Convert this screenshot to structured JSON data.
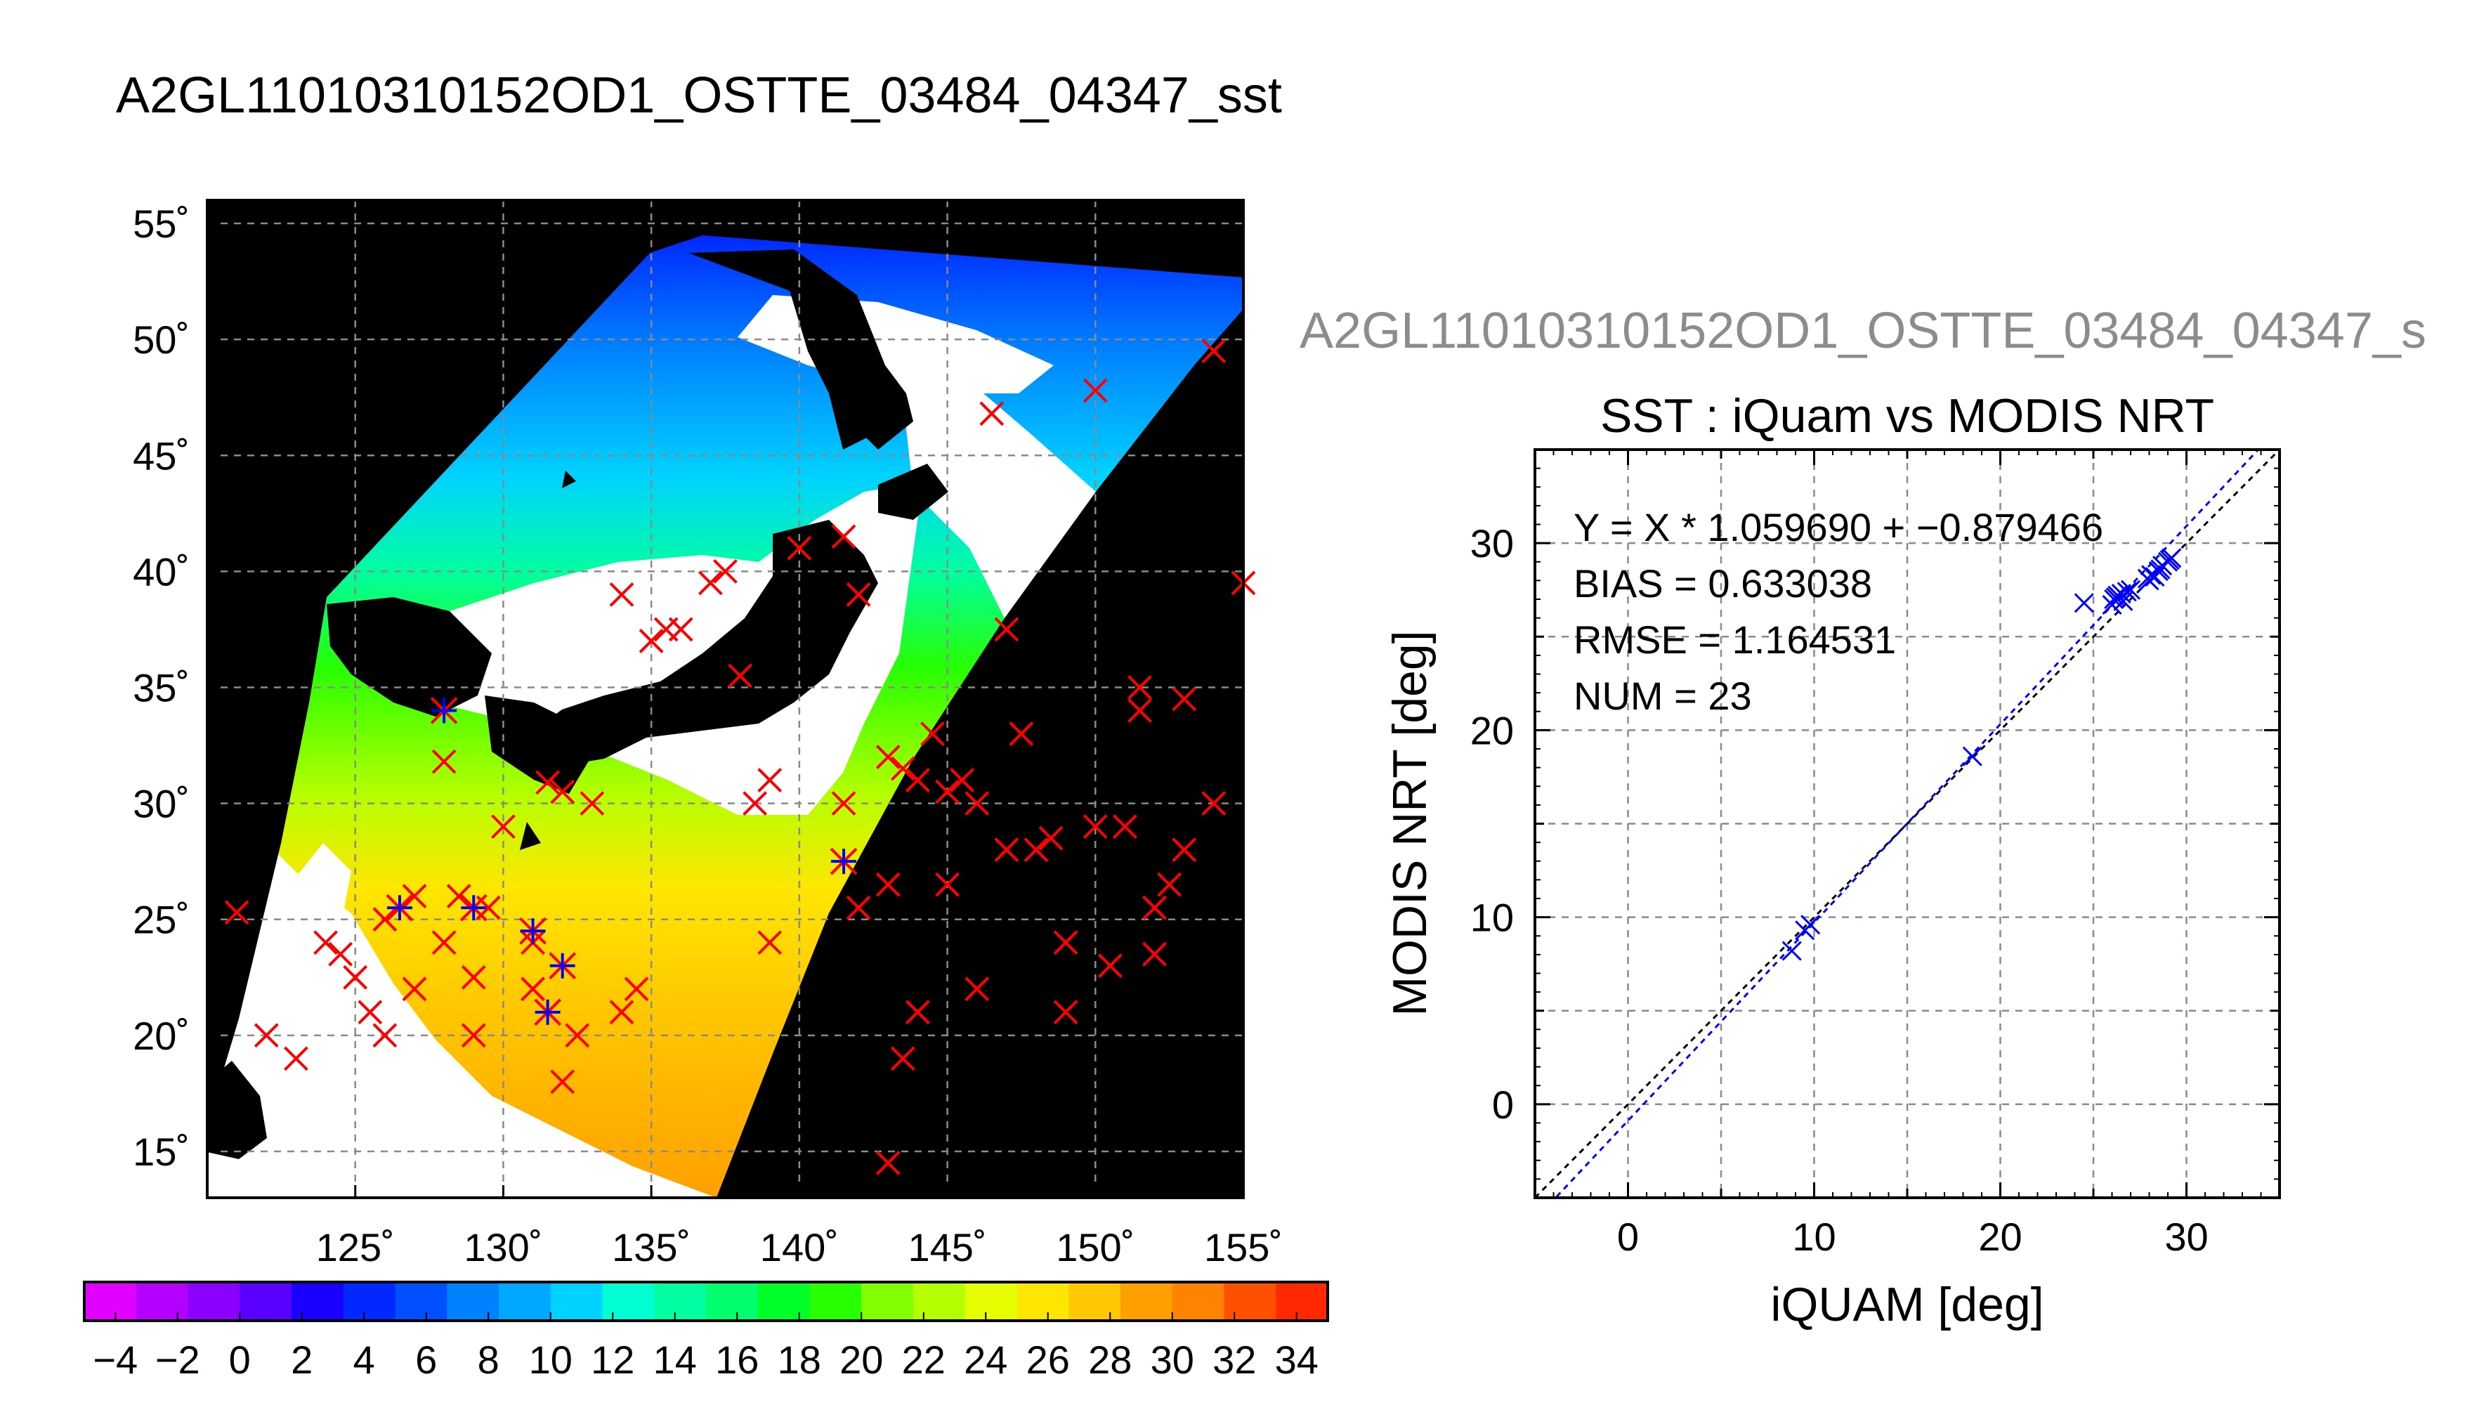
{
  "title": "A2GL11010310152OD1_OSTTE_03484_04347_sst",
  "chart_data": [
    {
      "type": "map",
      "title": "A2GL11010310152OD1_OSTTE_03484_04347_sst",
      "lon_ticks": [
        125,
        130,
        135,
        140,
        145,
        150,
        155
      ],
      "lat_ticks": [
        15,
        20,
        25,
        30,
        35,
        40,
        45,
        50,
        55
      ],
      "lon_tick_labels": [
        "125˚",
        "130˚",
        "135˚",
        "140˚",
        "145˚",
        "150˚",
        "155˚"
      ],
      "lat_tick_labels": [
        "15˚",
        "20˚",
        "25˚",
        "30˚",
        "35˚",
        "40˚",
        "45˚",
        "50˚",
        "55˚"
      ],
      "xlim": [
        120,
        155
      ],
      "ylim": [
        13,
        56
      ],
      "grid": true,
      "colorbar": {
        "range": [
          -5,
          35
        ],
        "tick_values": [
          -4,
          -2,
          0,
          2,
          4,
          6,
          8,
          10,
          12,
          14,
          16,
          18,
          20,
          22,
          24,
          26,
          28,
          30,
          32,
          34
        ],
        "tick_labels": [
          "−4",
          "−2",
          "0",
          "2",
          "4",
          "6",
          "8",
          "10",
          "12",
          "14",
          "16",
          "18",
          "20",
          "22",
          "24",
          "26",
          "28",
          "30",
          "32",
          "34"
        ],
        "colors": [
          "#e100ff",
          "#b400ff",
          "#8c00ff",
          "#5a00ff",
          "#1a00ff",
          "#0028ff",
          "#0050ff",
          "#0082ff",
          "#00a8ff",
          "#00d2ff",
          "#00ffd2",
          "#00ffa0",
          "#00ff6e",
          "#00ff28",
          "#28ff00",
          "#82ff00",
          "#b4ff00",
          "#e6ff00",
          "#ffe600",
          "#ffc800",
          "#ffa000",
          "#ff8200",
          "#ff5000",
          "#ff2800"
        ]
      },
      "markers_red_x": [
        [
          121,
          25.3
        ],
        [
          122,
          20
        ],
        [
          123,
          19
        ],
        [
          124,
          24
        ],
        [
          124.5,
          23.5
        ],
        [
          125,
          22.5
        ],
        [
          125.5,
          21
        ],
        [
          126,
          20
        ],
        [
          126,
          25
        ],
        [
          127,
          26
        ],
        [
          127,
          22
        ],
        [
          128,
          24
        ],
        [
          128,
          31.8
        ],
        [
          128.5,
          26
        ],
        [
          129,
          22.5
        ],
        [
          129,
          20
        ],
        [
          129.5,
          25.5
        ],
        [
          130,
          29
        ],
        [
          131,
          24
        ],
        [
          131,
          22
        ],
        [
          131.5,
          30.9
        ],
        [
          132,
          30.5
        ],
        [
          132,
          18
        ],
        [
          132.5,
          20
        ],
        [
          133,
          30
        ],
        [
          134,
          39
        ],
        [
          134,
          21
        ],
        [
          134.5,
          22
        ],
        [
          135,
          37
        ],
        [
          135.5,
          37.5
        ],
        [
          136,
          37.5
        ],
        [
          137,
          39.5
        ],
        [
          137.5,
          40
        ],
        [
          138,
          35.5
        ],
        [
          138.5,
          30
        ],
        [
          139,
          31
        ],
        [
          139,
          24
        ],
        [
          140,
          41
        ],
        [
          141.5,
          30
        ],
        [
          141.5,
          41.5
        ],
        [
          142,
          39
        ],
        [
          142,
          25.5
        ],
        [
          143,
          26.5
        ],
        [
          143,
          32
        ],
        [
          143.5,
          31.5
        ],
        [
          144,
          31
        ],
        [
          144.5,
          33
        ],
        [
          144,
          21
        ],
        [
          143.5,
          19
        ],
        [
          143,
          14.5
        ],
        [
          145,
          30.5
        ],
        [
          145.5,
          31
        ],
        [
          145,
          26.5
        ],
        [
          146,
          22
        ],
        [
          146,
          30
        ],
        [
          146.5,
          46.8
        ],
        [
          147,
          37.5
        ],
        [
          147.5,
          33
        ],
        [
          147,
          28
        ],
        [
          148,
          28
        ],
        [
          148.5,
          28.5
        ],
        [
          149,
          24
        ],
        [
          149,
          21
        ],
        [
          150,
          47.8
        ],
        [
          150,
          29
        ],
        [
          150.5,
          23
        ],
        [
          151,
          29
        ],
        [
          151.5,
          35
        ],
        [
          151.5,
          34
        ],
        [
          152,
          25.5
        ],
        [
          152.5,
          26.5
        ],
        [
          152,
          23.5
        ],
        [
          153,
          34.5
        ],
        [
          153,
          28
        ],
        [
          154,
          49.5
        ],
        [
          154,
          30
        ],
        [
          155,
          39.5
        ]
      ],
      "markers_blue_star": [
        [
          128,
          34
        ],
        [
          129,
          25.5
        ],
        [
          131,
          24.5
        ],
        [
          132,
          23
        ],
        [
          131.5,
          21
        ],
        [
          141.5,
          27.5
        ],
        [
          126.5,
          25.5
        ]
      ]
    },
    {
      "type": "scatter",
      "file_title": "A2GL11010310152OD1_OSTTE_03484_04347_s",
      "title": "SST : iQuam vs MODIS NRT",
      "xlabel": "iQUAM [deg]",
      "ylabel": "MODIS NRT [deg]",
      "xlim": [
        -5,
        35
      ],
      "ylim": [
        -5,
        35
      ],
      "x_ticks": [
        0,
        10,
        20,
        30
      ],
      "y_ticks": [
        0,
        10,
        20,
        30
      ],
      "grid": true,
      "stats": {
        "fit": "Y = X * 1.059690 + −0.879466",
        "bias": "BIAS = 0.633038",
        "rmse": "RMSE = 1.164531",
        "num": "NUM = 23"
      },
      "fit_line": {
        "slope": 1.05969,
        "intercept": -0.879466,
        "color": "#0000ff"
      },
      "identity_line": {
        "color": "#000000"
      },
      "series": [
        {
          "marker": "x",
          "color": "#0000ff",
          "x": [
            8.8,
            9.5,
            18.5,
            24.5,
            26.0,
            26.2,
            26.5,
            26.8,
            27.0,
            28.0,
            28.1,
            28.5,
            28.7,
            29.0,
            29.2,
            26.3,
            26.6,
            28.3,
            29.1,
            27.9,
            26.1,
            28.6,
            9.8
          ],
          "y": [
            8.2,
            9.3,
            18.6,
            26.8,
            26.7,
            27.1,
            27.3,
            27.4,
            27.5,
            28.0,
            28.3,
            28.5,
            28.8,
            29.0,
            29.2,
            27.2,
            26.9,
            28.2,
            29.1,
            28.1,
            27.0,
            28.6,
            9.6
          ]
        }
      ]
    }
  ]
}
